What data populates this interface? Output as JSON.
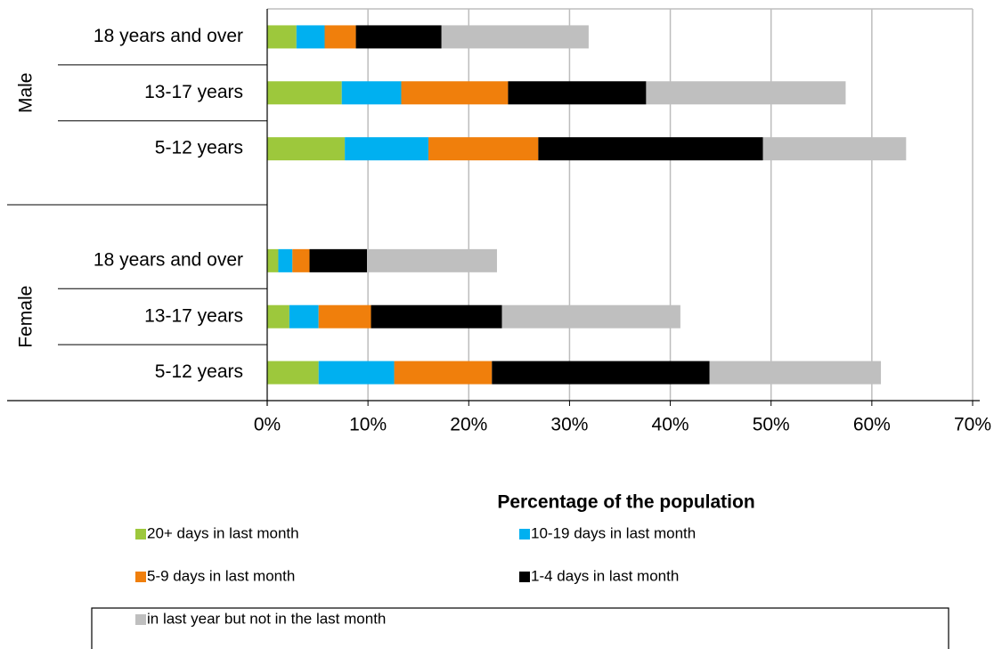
{
  "chart_data": {
    "type": "stacked-barh",
    "groups": [
      {
        "name": "Male",
        "categories": [
          "18 years and over",
          "13-17 years",
          "5-12 years"
        ]
      },
      {
        "name": "Female",
        "categories": [
          "18 years and over",
          "13-17 years",
          "5-12 years"
        ]
      }
    ],
    "series": [
      {
        "name": "20+ days in last month",
        "color": "#9dc83c",
        "values": [
          2.9,
          7.4,
          7.7,
          1.1,
          2.2,
          5.1
        ]
      },
      {
        "name": "10-19 days in last month",
        "color": "#00b0f0",
        "values": [
          2.8,
          5.9,
          8.3,
          1.4,
          2.9,
          7.5
        ]
      },
      {
        "name": "5-9 days in last month",
        "color": "#f07f0c",
        "values": [
          3.1,
          10.6,
          10.9,
          1.7,
          5.2,
          9.7
        ]
      },
      {
        "name": "1-4 days in last month",
        "color": "#000000",
        "values": [
          8.5,
          13.7,
          22.3,
          5.7,
          13.0,
          21.6
        ]
      },
      {
        "name": "in last year but not in the last month",
        "color": "#bfbfbf",
        "values": [
          14.6,
          19.8,
          14.2,
          12.9,
          17.7,
          17.0
        ]
      }
    ],
    "xlabel": "Percentage of the population",
    "xlim": [
      0,
      70
    ],
    "xticks": [
      {
        "value": 0,
        "label": "0%"
      },
      {
        "value": 10,
        "label": "10%"
      },
      {
        "value": 20,
        "label": "20%"
      },
      {
        "value": 30,
        "label": "30%"
      },
      {
        "value": 40,
        "label": "40%"
      },
      {
        "value": 50,
        "label": "50%"
      },
      {
        "value": 60,
        "label": "60%"
      },
      {
        "value": 70,
        "label": "70%"
      }
    ],
    "grid": true,
    "legend": "bottom"
  }
}
